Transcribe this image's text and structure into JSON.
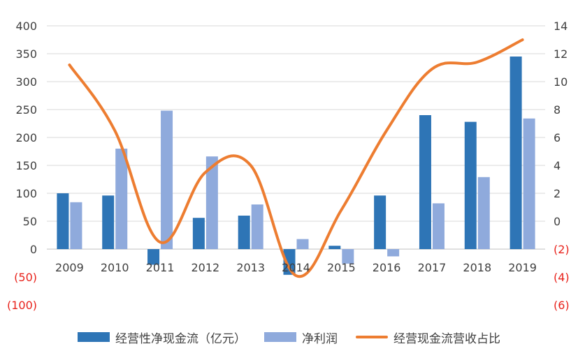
{
  "chart_data": {
    "type": "bar",
    "categories": [
      "2009",
      "2010",
      "2011",
      "2012",
      "2013",
      "2014",
      "2015",
      "2016",
      "2017",
      "2018",
      "2019"
    ],
    "series": [
      {
        "name": "经营性净现金流（亿元）",
        "type": "bar",
        "axis": "left",
        "color": "#2e75b6",
        "values": [
          100,
          96,
          -28,
          56,
          60,
          -46,
          6,
          96,
          240,
          228,
          345
        ]
      },
      {
        "name": "净利润",
        "type": "bar",
        "axis": "left",
        "color": "#8faadc",
        "values": [
          84,
          180,
          248,
          166,
          80,
          18,
          -26,
          -13,
          82,
          129,
          234
        ]
      },
      {
        "name": "经营现金流营收占比",
        "type": "line",
        "axis": "right",
        "color": "#ed7d31",
        "values": [
          11.2,
          6.5,
          -1.5,
          3.5,
          4.0,
          -3.9,
          0.8,
          6.5,
          10.9,
          11.4,
          13.0
        ]
      }
    ],
    "left_axis": {
      "ylim": [
        -100,
        400
      ],
      "ticks": [
        400,
        350,
        300,
        250,
        200,
        150,
        100,
        50,
        0,
        -50,
        -100
      ],
      "tick_labels": [
        "400",
        "350",
        "300",
        "250",
        "200",
        "150",
        "100",
        "50",
        "0",
        "(50)",
        "(100)"
      ]
    },
    "right_axis": {
      "ylim": [
        -6,
        14
      ],
      "ticks": [
        14,
        12,
        10,
        8,
        6,
        4,
        2,
        0,
        -2,
        -4,
        -6
      ],
      "tick_labels": [
        "14",
        "12",
        "10",
        "8",
        "6",
        "4",
        "2",
        "0",
        "(2)",
        "(4)",
        "(6)"
      ]
    },
    "grid": true,
    "legend": "bottom",
    "negative_label_color": "#e8221b"
  }
}
